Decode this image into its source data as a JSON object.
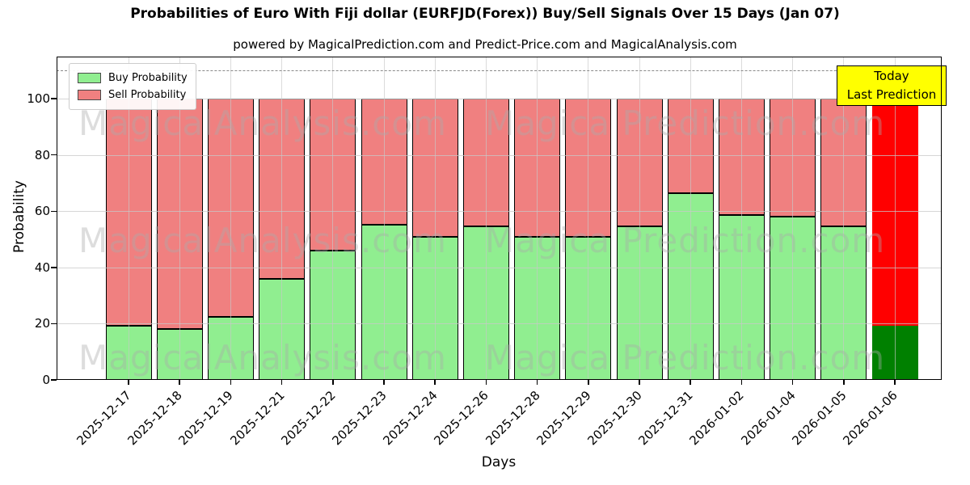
{
  "title": "Probabilities of Euro With Fiji dollar (EURFJD(Forex)) Buy/Sell Signals Over 15 Days (Jan 07)",
  "subtitle": "powered by MagicalPrediction.com and Predict-Price.com and MagicalAnalysis.com",
  "legend": {
    "buy_label": "Buy Probability",
    "sell_label": "Sell Probability"
  },
  "annotation": {
    "line1": "Today",
    "line2": "Last Prediction",
    "bg_color": "#FFFF00"
  },
  "watermarks": {
    "left": "MagicalAnalysis.com",
    "right": "Magica Prediction.com"
  },
  "colors": {
    "buy": "#90EE90",
    "sell": "#F08080",
    "last_bar_buy": "#008000",
    "last_bar_sell": "#FF0000",
    "bar_edge": "#000000",
    "grid": "#c8c8c8",
    "dashed_line": "#8a8a8a",
    "today_box_bg": "#FFFF00"
  },
  "chart_data": {
    "type": "bar",
    "stacked": true,
    "title": "Probabilities of Euro With Fiji dollar (EURFJD(Forex)) Buy/Sell Signals Over 15 Days (Jan 07)",
    "xlabel": "Days",
    "ylabel": "Probability",
    "ylim": [
      0,
      115
    ],
    "yticks": [
      0,
      20,
      40,
      60,
      80,
      100
    ],
    "grid": true,
    "legend_position": "upper left",
    "dashed_line_y": 110,
    "categories": [
      "2025-12-17",
      "2025-12-18",
      "2025-12-19",
      "2025-12-21",
      "2025-12-22",
      "2025-12-23",
      "2025-12-24",
      "2025-12-26",
      "2025-12-28",
      "2025-12-29",
      "2025-12-30",
      "2025-12-31",
      "2026-01-02",
      "2026-01-04",
      "2026-01-05",
      "2026-01-06"
    ],
    "series": [
      {
        "name": "Buy Probability",
        "color": "#90EE90",
        "values": [
          19.4,
          18.1,
          22.5,
          36.0,
          46.0,
          55.3,
          51.0,
          54.5,
          51.0,
          50.8,
          54.7,
          66.5,
          58.7,
          58.0,
          54.5,
          19.4
        ]
      },
      {
        "name": "Sell Probability",
        "color": "#F08080",
        "values": [
          80.6,
          81.9,
          77.5,
          64.0,
          54.0,
          44.7,
          49.0,
          45.5,
          49.0,
          49.2,
          45.3,
          33.5,
          41.3,
          42.0,
          45.5,
          80.6
        ]
      }
    ],
    "highlight_last_bar": {
      "label": "Today / Last Prediction",
      "buy_color": "#008000",
      "sell_color": "#FF0000"
    }
  }
}
